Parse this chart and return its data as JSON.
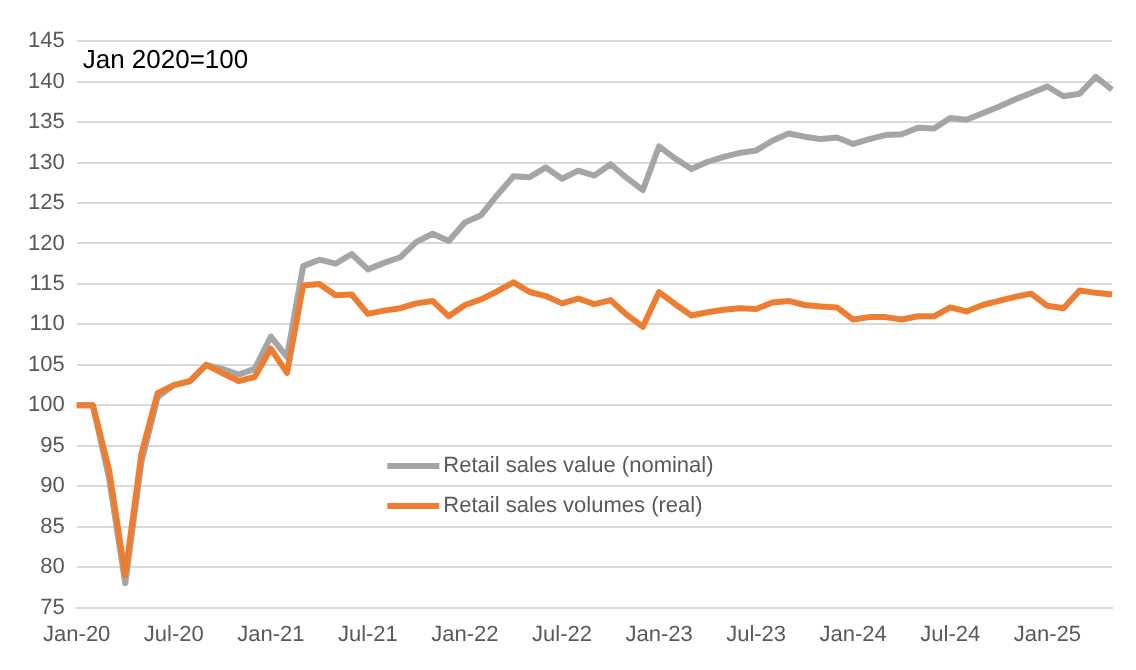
{
  "chart_data": {
    "type": "line",
    "categories": [
      "Jan-20",
      null,
      null,
      null,
      null,
      null,
      "Jul-20",
      null,
      null,
      null,
      null,
      null,
      "Jan-21",
      null,
      null,
      null,
      null,
      null,
      "Jul-21",
      null,
      null,
      null,
      null,
      null,
      "Jan-22",
      null,
      null,
      null,
      null,
      null,
      "Jul-22",
      null,
      null,
      null,
      null,
      null,
      "Jan-23",
      null,
      null,
      null,
      null,
      null,
      "Jul-23",
      null,
      null,
      null,
      null,
      null,
      "Jan-24",
      null,
      null,
      null,
      null,
      null,
      "Jul-24",
      null,
      null,
      null,
      null,
      null,
      "Jan-25",
      null,
      null,
      null,
      null
    ],
    "series": [
      {
        "name": "Retail sales value (nominal)",
        "color": "#a5a5a5",
        "values": [
          100,
          100,
          91,
          78,
          93,
          101,
          102.5,
          103,
          105,
          104.5,
          103.8,
          104.5,
          108.5,
          106,
          117.2,
          118,
          117.5,
          118.7,
          116.8,
          117.6,
          118.3,
          120.2,
          121.2,
          120.3,
          122.6,
          123.5,
          126,
          128.3,
          128.2,
          129.4,
          128,
          129,
          128.4,
          129.8,
          128.1,
          126.6,
          132,
          130.5,
          129.2,
          130.1,
          130.7,
          131.2,
          131.5,
          132.7,
          133.6,
          133.2,
          132.9,
          133.1,
          132.3,
          132.9,
          133.4,
          133.5,
          134.3,
          134.2,
          135.5,
          135.3,
          136.1,
          136.9,
          137.8,
          138.6,
          139.4,
          138.2,
          138.5,
          140.6,
          139
        ]
      },
      {
        "name": "Retail sales volumes (real)",
        "color": "#ed7d31",
        "values": [
          100,
          100,
          92,
          79,
          94,
          101.5,
          102.5,
          103,
          105,
          104,
          103,
          103.5,
          107,
          104,
          114.8,
          115,
          113.6,
          113.7,
          111.3,
          111.7,
          112,
          112.6,
          112.9,
          111,
          112.4,
          113.1,
          114.1,
          115.2,
          114,
          113.5,
          112.6,
          113.2,
          112.5,
          113,
          111.2,
          109.7,
          114,
          112.5,
          111.1,
          111.5,
          111.8,
          112,
          111.9,
          112.7,
          112.9,
          112.4,
          112.2,
          112.1,
          110.6,
          110.9,
          110.9,
          110.6,
          111,
          111,
          112.1,
          111.6,
          112.4,
          112.9,
          113.4,
          113.8,
          112.3,
          112,
          114.2,
          113.9,
          113.7
        ]
      }
    ],
    "ylim": [
      75,
      145
    ],
    "yticks": [
      75,
      80,
      85,
      90,
      95,
      100,
      105,
      110,
      115,
      120,
      125,
      130,
      135,
      140,
      145
    ],
    "grid": "y",
    "legend": "bottom",
    "marker": "none",
    "line_style": "solid",
    "annotations": [
      "Jan 2020=100"
    ]
  }
}
